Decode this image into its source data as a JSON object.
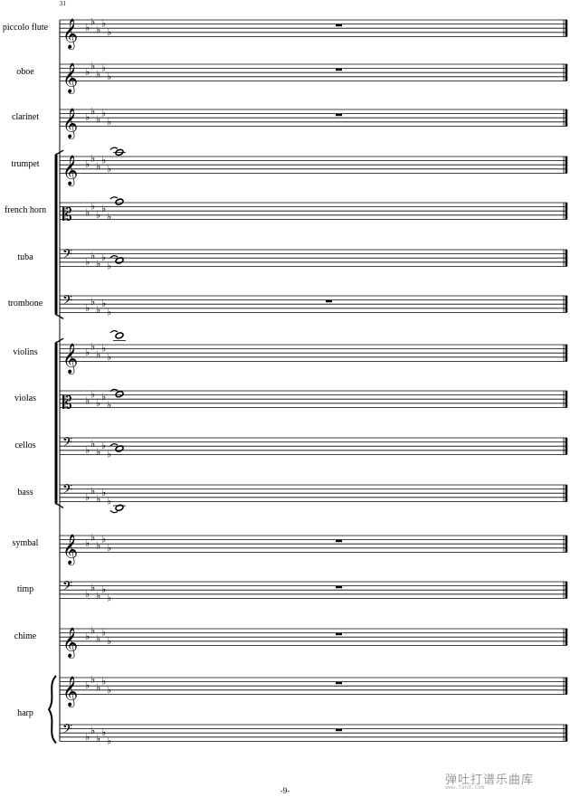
{
  "measure_number": "31",
  "page_number": "-9-",
  "watermark": {
    "text": "弹吐打谱乐曲库",
    "sub": "www.tan8.com"
  },
  "instruments": [
    {
      "name": "piccolo flute",
      "clef": "treble",
      "content": "rest"
    },
    {
      "name": "oboe",
      "clef": "treble",
      "content": "rest"
    },
    {
      "name": "clarinet",
      "clef": "treble",
      "content": "rest"
    },
    {
      "name": "trumpet",
      "clef": "treble",
      "content": "note"
    },
    {
      "name": "french horn",
      "clef": "alto",
      "content": "note"
    },
    {
      "name": "tuba",
      "clef": "bass",
      "content": "note"
    },
    {
      "name": "trombone",
      "clef": "bass",
      "content": "rest"
    },
    {
      "name": "violins",
      "clef": "treble",
      "content": "note"
    },
    {
      "name": "violas",
      "clef": "alto",
      "content": "note"
    },
    {
      "name": "cellos",
      "clef": "bass",
      "content": "note"
    },
    {
      "name": "bass",
      "clef": "bass",
      "content": "note"
    },
    {
      "name": "symbal",
      "clef": "treble",
      "content": "rest"
    },
    {
      "name": "timp",
      "clef": "bass",
      "content": "rest"
    },
    {
      "name": "chime",
      "clef": "treble",
      "content": "rest"
    },
    {
      "name": "harp",
      "clef": "treble",
      "content": "rest"
    },
    {
      "name": "",
      "clef": "bass",
      "content": "rest"
    }
  ],
  "key_signature": "5 flats",
  "colors": {
    "ink": "#000000",
    "watermark": "#9a9a9a"
  }
}
